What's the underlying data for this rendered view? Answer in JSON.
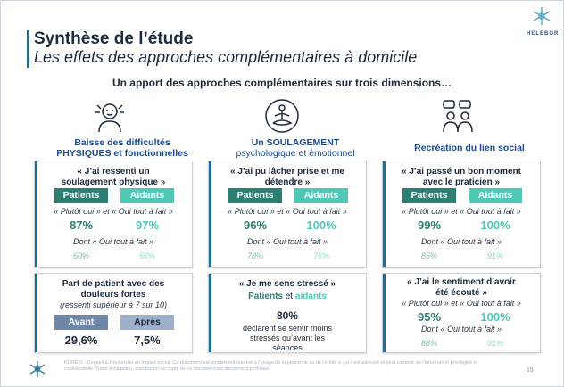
{
  "header": {
    "title": "Synthèse de l’étude",
    "subtitle": "Les effets des approches complémentaires à domicile",
    "logo_text": "HELEBOR"
  },
  "intro": "Un apport des approches complémentaires sur trois dimensions…",
  "colors": {
    "primary": "#2e7f73",
    "secondary": "#4fc9b6",
    "heading": "#1e4a8a",
    "stripe": "#1c6e94"
  },
  "columns": [
    {
      "icon": "person-relief-icon",
      "heading_bold": "Baisse des difficultés PHYSIQUES et fonctionnelles",
      "heading_rest": "",
      "quote": "« J’ai ressenti un soulagement physique »",
      "patients_label": "Patients",
      "aidants_label": "Aidants",
      "note_combined": "« Plutôt oui » et « Oui tout à fait »",
      "patients_pct": "87%",
      "aidants_pct": "97%",
      "note_full": "Dont « Oui tout à fait »",
      "patients_full": "60%",
      "aidants_full": "66%"
    },
    {
      "icon": "meditation-icon",
      "heading_bold": "Un SOULAGEMENT",
      "heading_rest": "psychologique et émotionnel",
      "quote": "« J’ai pu lâcher prise et me détendre »",
      "patients_label": "Patients",
      "aidants_label": "Aidants",
      "note_combined": "« Plutôt oui » et « Oui tout à fait »",
      "patients_pct": "96%",
      "aidants_pct": "100%",
      "note_full": "Dont « Oui tout à fait »",
      "patients_full": "78%",
      "aidants_full": "76%"
    },
    {
      "icon": "conversation-icon",
      "heading_bold": "Recréation du lien social",
      "heading_rest": "",
      "quote": "« J’ai passé un bon moment avec le praticien »",
      "patients_label": "Patients",
      "aidants_label": "Aidants",
      "note_combined": "« Plutôt oui » et « Oui tout à fait »",
      "patients_pct": "99%",
      "aidants_pct": "100%",
      "note_full": "Dont « Oui tout à fait »",
      "patients_full": "85%",
      "aidants_full": "91%"
    }
  ],
  "pain_card": {
    "title": "Part de patient avec des douleurs fortes",
    "subtitle": "(ressenti supérieur à 7 sur 10)",
    "before_label": "Avant",
    "after_label": "Après",
    "before_value": "29,6%",
    "after_value": "7,5%"
  },
  "stress_card": {
    "quote": "« Je me sens stressé »",
    "who_patients": "Patients",
    "who_and": " et ",
    "who_aidants": "aidants",
    "value": "80%",
    "text": "déclarent se sentir moins stressés qu’avant les séances"
  },
  "listened_card": {
    "quote": "« J’ai le sentiment d’avoir été écouté »",
    "note_combined": "« Plutôt oui » et « Oui tout à fait »",
    "patients_pct": "95%",
    "aidants_pct": "100%",
    "note_full": "Dont « Oui tout à fait »",
    "patients_full": "88%",
    "aidants_full": "91%"
  },
  "footer": {
    "text": "KOREIS - Conseil & Recherche en impact social. Ce document est strictement réservé à l’usage de la personne ou de l’entité à qui il est adressé et peut contenir de l’information privilégiée et confidentielle. Toute divulgation, distribution ou copie de ce document est strictement prohibée.",
    "page": "15"
  }
}
